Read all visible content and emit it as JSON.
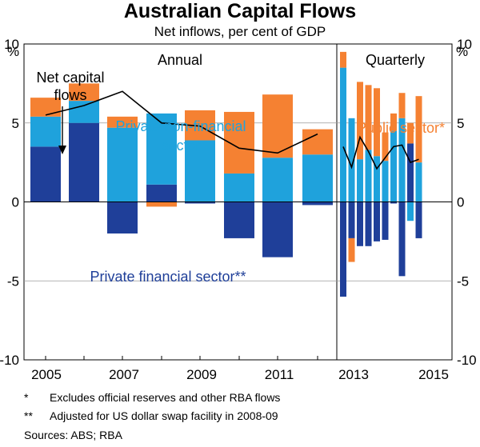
{
  "title": "Australian Capital Flows",
  "subtitle": "Net inflows, per cent of GDP",
  "notes": [
    {
      "marker": "*",
      "text": "Excludes official reserves and other RBA flows"
    },
    {
      "marker": "**",
      "text": "Adjusted for US dollar swap facility in 2008-09"
    }
  ],
  "sources": "Sources:  ABS; RBA",
  "chart_data": {
    "type": "bar",
    "stacked": true,
    "unit_left": "%",
    "unit_right": "%",
    "ylim": [
      -10,
      10
    ],
    "yticks": [
      10,
      5,
      0,
      -5,
      -10
    ],
    "xtick_labels": [
      "2005",
      "2007",
      "2009",
      "2011",
      "2013",
      "2015"
    ],
    "panels": [
      {
        "label": "Annual",
        "periods": [
          "2005",
          "2006",
          "2007",
          "2008",
          "2009",
          "2010",
          "2011",
          "2012"
        ]
      },
      {
        "label": "Quarterly",
        "periods": [
          "2012 Q4",
          "2013 Q1",
          "2013 Q2",
          "2013 Q3",
          "2013 Q4",
          "2014 Q1",
          "2014 Q2",
          "2014 Q3",
          "2014 Q4",
          "2015 Q1"
        ]
      }
    ],
    "series": [
      {
        "name": "Private financial sector**",
        "color": "#1f3f99",
        "annual": [
          3.5,
          5.0,
          -2.0,
          1.1,
          -0.1,
          -2.3,
          -3.5,
          -0.2
        ],
        "quarterly": [
          -6.0,
          -2.3,
          -2.8,
          -2.8,
          -2.5,
          -2.4,
          -0.1,
          -4.7,
          3.7,
          -2.3
        ]
      },
      {
        "name": "Private non-financial sector",
        "color": "#1fa2dc",
        "annual": [
          1.9,
          1.4,
          4.7,
          4.5,
          3.9,
          1.8,
          2.8,
          3.0
        ],
        "quarterly": [
          8.5,
          5.3,
          2.7,
          3.3,
          2.9,
          2.6,
          4.5,
          5.3,
          -1.2,
          2.5
        ]
      },
      {
        "name": "Public sector*",
        "color": "#f58132",
        "annual": [
          1.2,
          1.1,
          0.7,
          -0.3,
          1.9,
          3.9,
          4.0,
          1.6
        ],
        "quarterly": [
          1.0,
          -1.5,
          4.9,
          4.1,
          4.3,
          1.8,
          1.1,
          1.6,
          1.3,
          4.2
        ]
      }
    ],
    "net_line": {
      "name": "Net capital flows",
      "annual": [
        5.5,
        6.1,
        7.0,
        5.0,
        4.8,
        3.4,
        3.1,
        4.3
      ],
      "quarterly": [
        3.5,
        2.2,
        4.1,
        3.2,
        2.1,
        2.8,
        3.5,
        3.6,
        2.5,
        2.7
      ]
    },
    "annotations": [
      "Net capital flows",
      "Private non-financial sector",
      "Public sector*",
      "Private financial sector**"
    ]
  }
}
